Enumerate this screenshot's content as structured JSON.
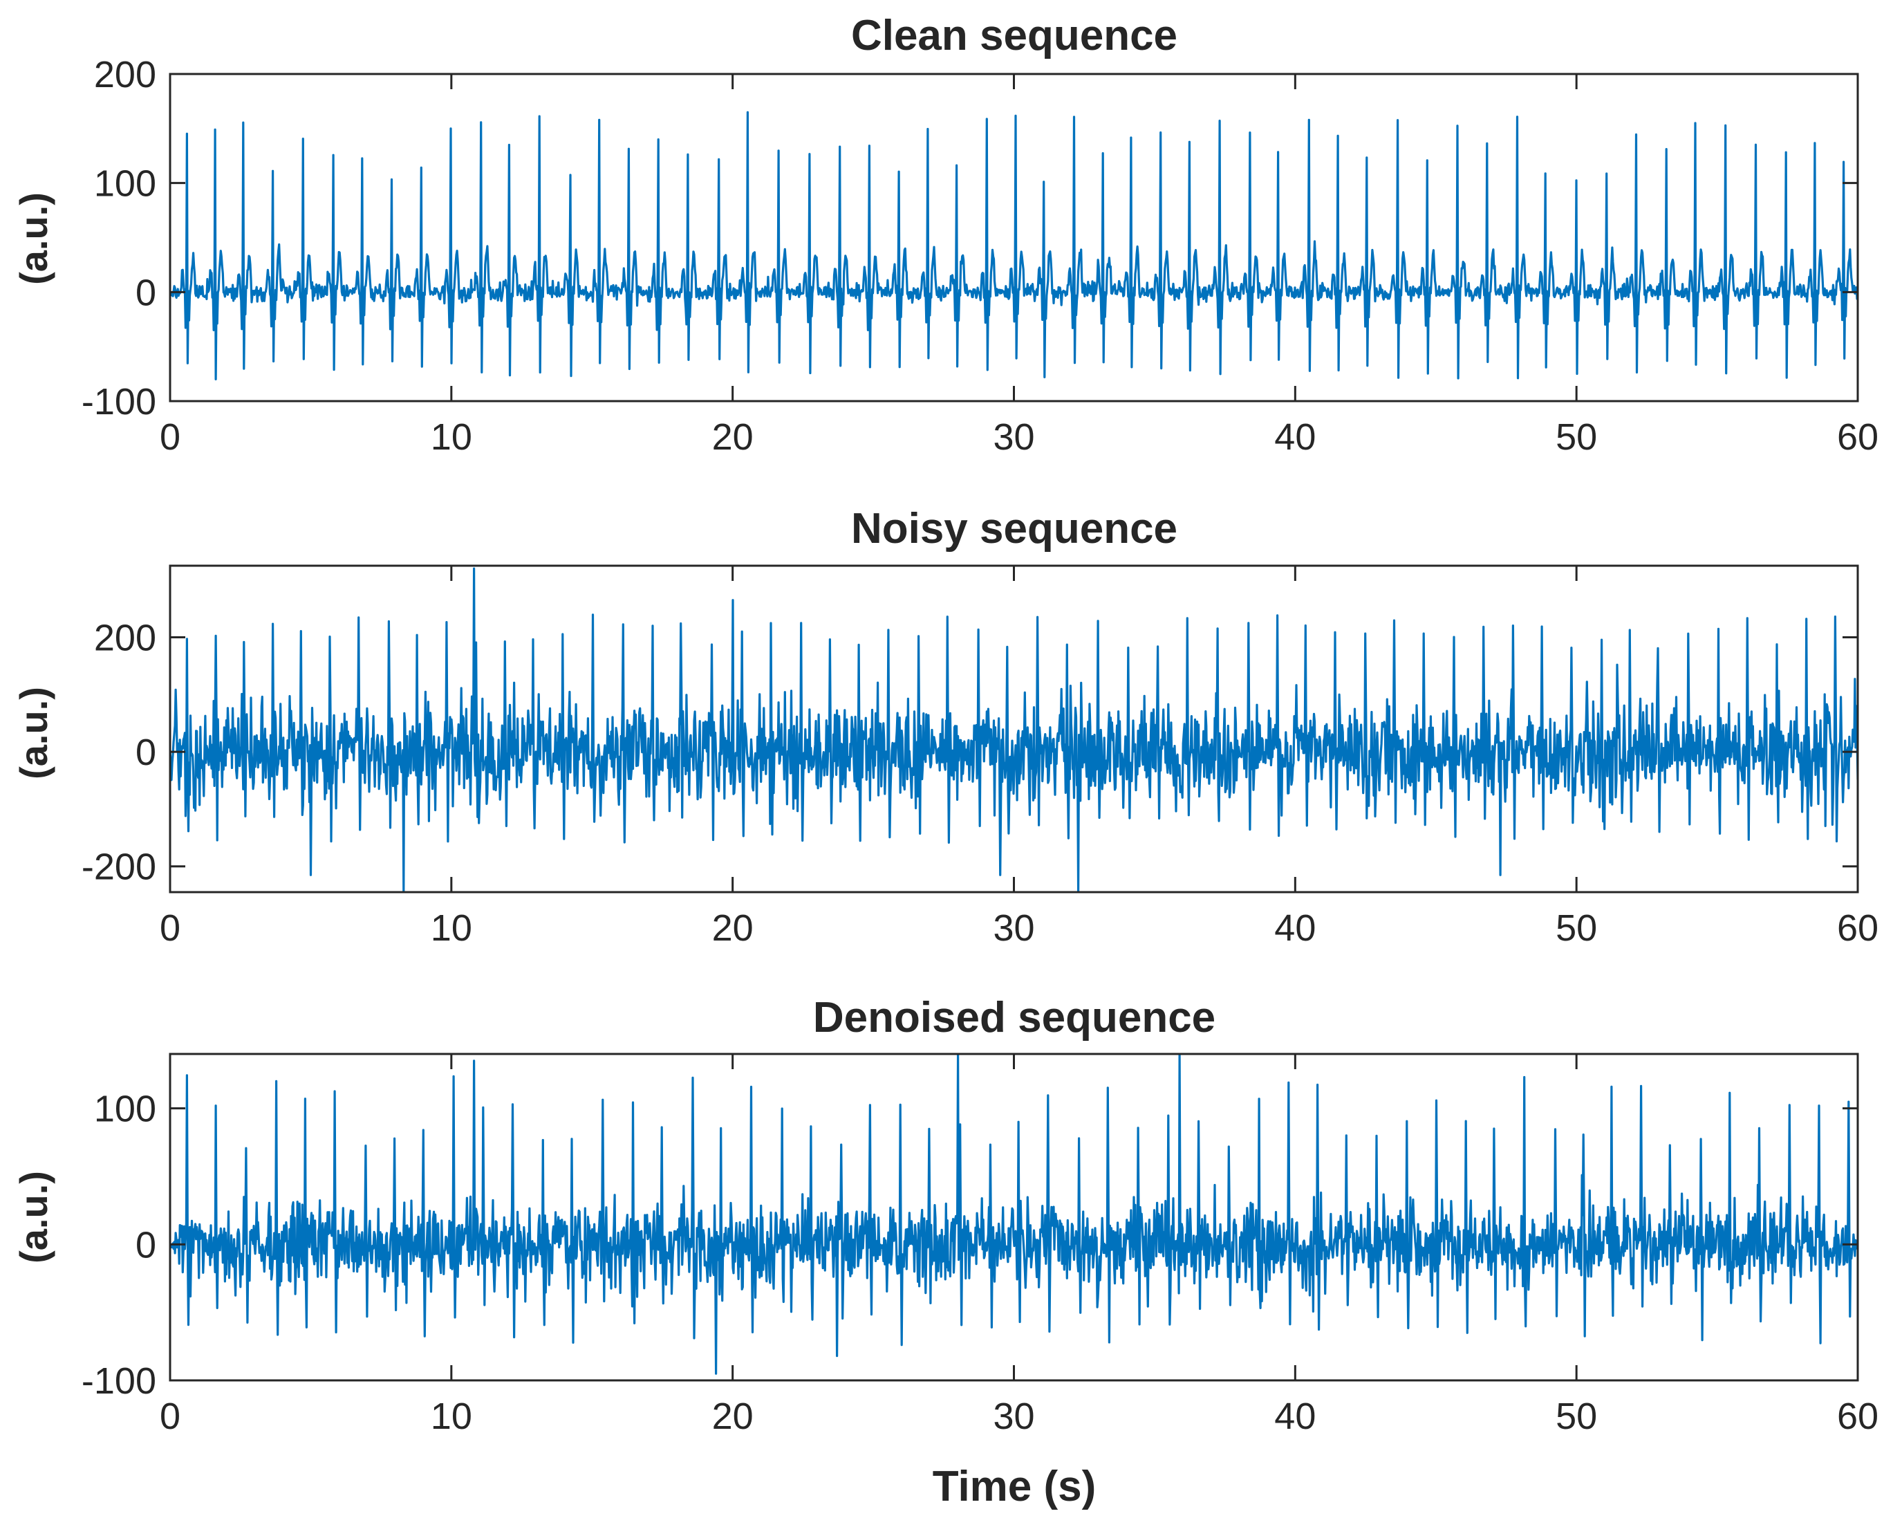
{
  "colors": {
    "line": "#0072BD",
    "axis": "#262626",
    "background": "#ffffff"
  },
  "chart_data": [
    {
      "type": "line",
      "title": "Clean sequence",
      "xlabel": "",
      "ylabel": "(a.u.)",
      "xlim": [
        0,
        60
      ],
      "ylim": [
        -100,
        200
      ],
      "xticks": [
        "0",
        "10",
        "20",
        "30",
        "40",
        "50",
        "60"
      ],
      "yticks": [
        "-100",
        "0",
        "100",
        "200"
      ],
      "ytick_values": [
        -100,
        0,
        100,
        200
      ],
      "series": [
        {
          "name": "clean",
          "kind": "ecg",
          "beats_start": 0.6,
          "beat_interval_s": 1.05,
          "r_peak_range": [
            100,
            165
          ],
          "s_trough_range": [
            -60,
            -80
          ],
          "baseline_noise": 4
        }
      ]
    },
    {
      "type": "line",
      "title": "Noisy sequence",
      "xlabel": "",
      "ylabel": "(a.u.)",
      "xlim": [
        0,
        60
      ],
      "ylim": [
        -245,
        325
      ],
      "xticks": [
        "0",
        "10",
        "20",
        "30",
        "40",
        "50",
        "60"
      ],
      "yticks": [
        "-200",
        "0",
        "200"
      ],
      "ytick_values": [
        -200,
        0,
        200
      ],
      "series": [
        {
          "name": "noisy",
          "kind": "noisy",
          "beats_start": 0.6,
          "beat_interval_s": 1.05,
          "noise_band": [
            -120,
            120
          ],
          "spike_range": [
            180,
            320
          ],
          "neg_spike_range": [
            -150,
            -245
          ]
        }
      ]
    },
    {
      "type": "line",
      "title": "Denoised sequence",
      "xlabel": "Time (s)",
      "ylabel": "(a.u.)",
      "xlim": [
        0,
        60
      ],
      "ylim": [
        -100,
        140
      ],
      "xticks": [
        "0",
        "10",
        "20",
        "30",
        "40",
        "50",
        "60"
      ],
      "yticks": [
        "-100",
        "0",
        "100"
      ],
      "ytick_values": [
        -100,
        0,
        100
      ],
      "series": [
        {
          "name": "denoised",
          "kind": "denoised",
          "beats_start": 0.6,
          "beat_interval_s": 1.05,
          "noise_band": [
            -40,
            40
          ],
          "r_peak_range": [
            70,
            140
          ],
          "s_trough_range": [
            -40,
            -95
          ]
        }
      ]
    }
  ]
}
